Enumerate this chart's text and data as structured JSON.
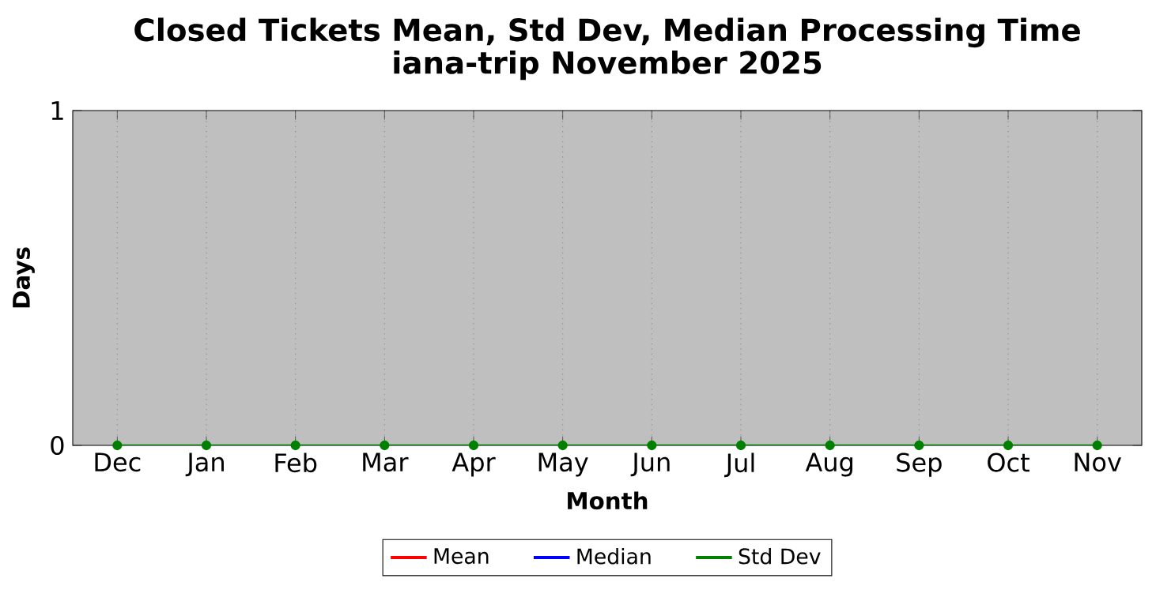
{
  "chart_data": {
    "type": "line",
    "title": "Closed Tickets Mean, Std Dev, Median Processing Time",
    "subtitle": "iana-trip November 2025",
    "xlabel": "Month",
    "ylabel": "Days",
    "categories": [
      "Dec",
      "Jan",
      "Feb",
      "Mar",
      "Apr",
      "May",
      "Jun",
      "Jul",
      "Aug",
      "Sep",
      "Oct",
      "Nov"
    ],
    "series": [
      {
        "name": "Mean",
        "color": "#ff0000",
        "values": [
          null,
          null,
          null,
          null,
          null,
          null,
          null,
          null,
          null,
          null,
          null,
          null
        ]
      },
      {
        "name": "Median",
        "color": "#0000ff",
        "values": [
          null,
          null,
          null,
          null,
          null,
          null,
          null,
          null,
          null,
          null,
          null,
          null
        ]
      },
      {
        "name": "Std Dev",
        "color": "#008000",
        "values": [
          0,
          0,
          0,
          0,
          0,
          0,
          0,
          0,
          0,
          0,
          0,
          0
        ]
      }
    ],
    "ylim": [
      0,
      1
    ],
    "yticks": [
      0,
      1
    ],
    "grid": "x",
    "legend": "bottom",
    "marker": "circle",
    "line_style": "solid"
  }
}
